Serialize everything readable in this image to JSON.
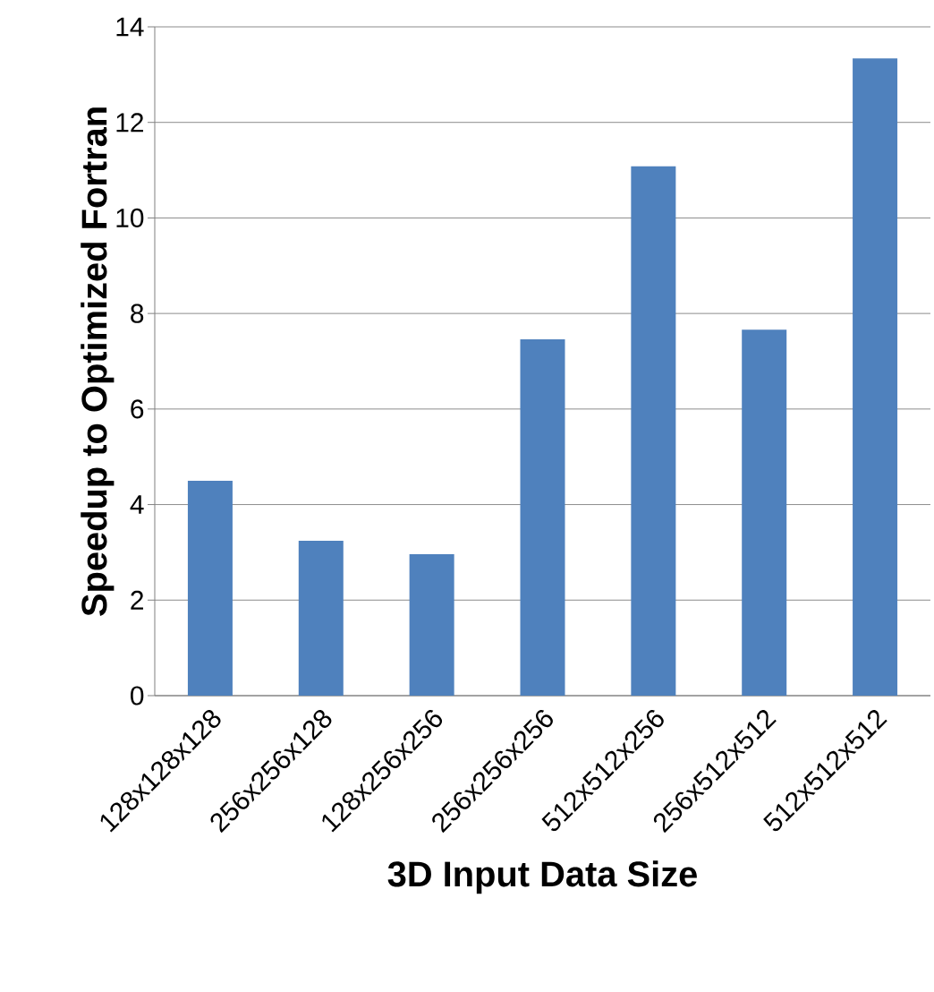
{
  "chart_data": {
    "type": "bar",
    "xlabel": "3D Input Data Size",
    "ylabel": "Speedup to Optimized Fortran",
    "categories": [
      "128x128x128",
      "256x256x128",
      "128x256x256",
      "256x256x256",
      "512x512x256",
      "256x512x512",
      "512x512x512"
    ],
    "values": [
      4.5,
      3.24,
      2.96,
      7.46,
      11.08,
      7.66,
      13.34
    ],
    "color": "#4f81bd",
    "ylim": [
      0,
      14
    ],
    "yticks": [
      0,
      2,
      4,
      6,
      8,
      10,
      12,
      14
    ],
    "grid": "y"
  }
}
